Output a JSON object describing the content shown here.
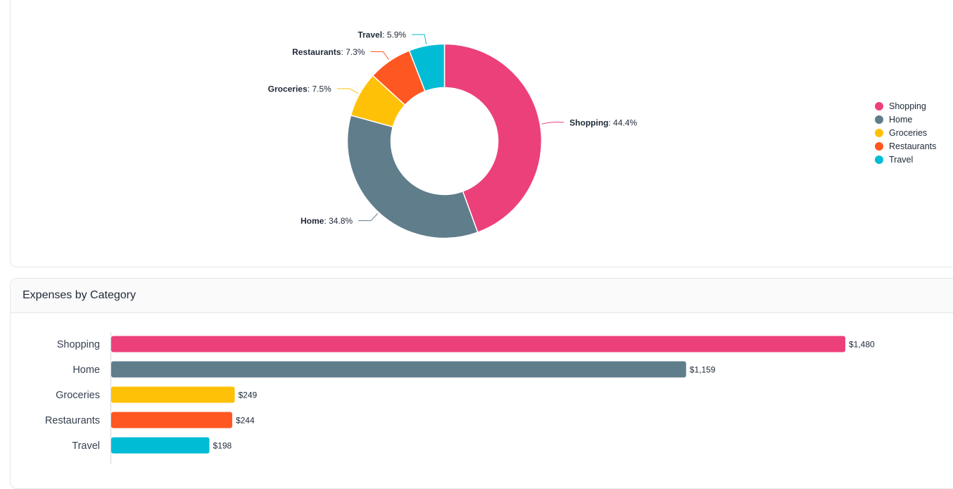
{
  "donut_panel": {
    "legend": [
      {
        "label": "Shopping",
        "color": "#ec407a"
      },
      {
        "label": "Home",
        "color": "#607d8b"
      },
      {
        "label": "Groceries",
        "color": "#ffc107"
      },
      {
        "label": "Restaurants",
        "color": "#ff5722"
      },
      {
        "label": "Travel",
        "color": "#00bcd4"
      }
    ]
  },
  "bar_panel": {
    "title": "Expenses by Category"
  },
  "chart_data": [
    {
      "type": "pie",
      "variant": "donut",
      "slices": [
        {
          "label": "Shopping",
          "value": 44.4,
          "value_label": "44.4%",
          "color": "#ec407a"
        },
        {
          "label": "Home",
          "value": 34.8,
          "value_label": "34.8%",
          "color": "#607d8b"
        },
        {
          "label": "Groceries",
          "value": 7.5,
          "value_label": "7.5%",
          "color": "#ffc107"
        },
        {
          "label": "Restaurants",
          "value": 7.3,
          "value_label": "7.3%",
          "color": "#ff5722"
        },
        {
          "label": "Travel",
          "value": 5.9,
          "value_label": "5.9%",
          "color": "#00bcd4"
        }
      ],
      "legend_position": "right"
    },
    {
      "type": "bar",
      "orientation": "horizontal",
      "title": "Expenses by Category",
      "categories": [
        "Shopping",
        "Home",
        "Groceries",
        "Restaurants",
        "Travel"
      ],
      "values": [
        1480,
        1159,
        249,
        244,
        198
      ],
      "value_labels": [
        "$1,480",
        "$1,159",
        "$249",
        "$244",
        "$198"
      ],
      "colors": [
        "#ec407a",
        "#607d8b",
        "#ffc107",
        "#ff5722",
        "#00bcd4"
      ]
    }
  ]
}
